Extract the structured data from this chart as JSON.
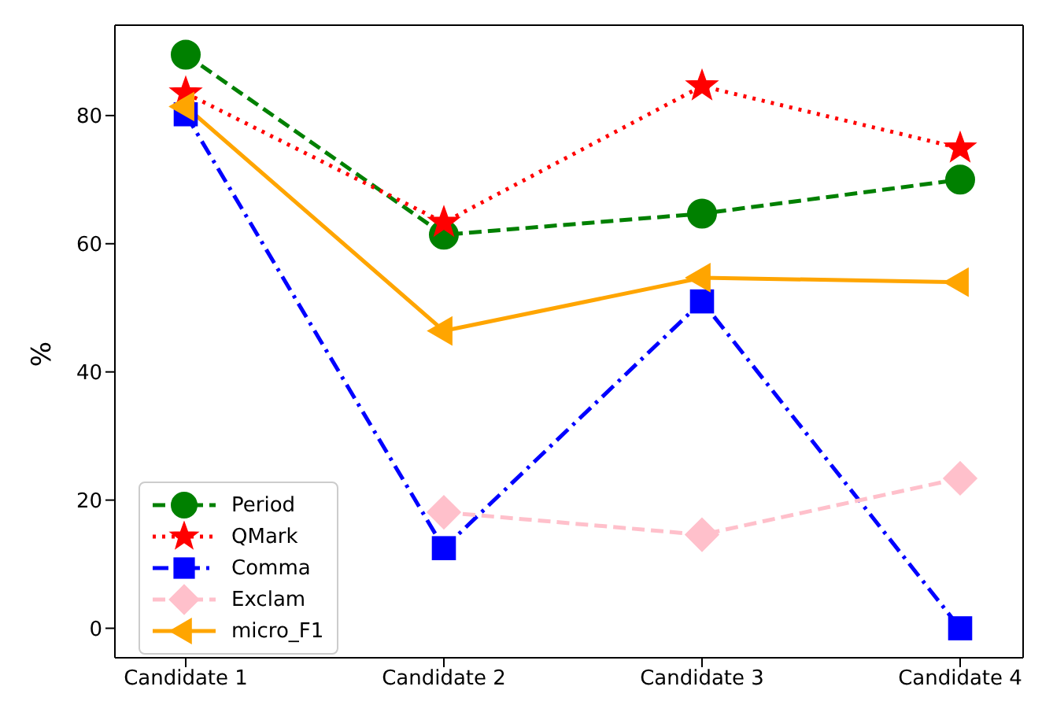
{
  "chart_data": {
    "type": "line",
    "ylabel": "%",
    "categories": [
      "Candidate 1",
      "Candidate 2",
      "Candidate 3",
      "Candidate 4"
    ],
    "series": [
      {
        "name": "Period",
        "color": "#008000",
        "marker": "circle",
        "line_style": "dashed",
        "values": [
          89.5,
          61.4,
          64.7,
          70.0
        ]
      },
      {
        "name": "QMark",
        "color": "#ff0000",
        "marker": "star",
        "line_style": "dotted",
        "values": [
          83.5,
          63.3,
          84.6,
          74.9
        ]
      },
      {
        "name": "Comma",
        "color": "#0000ff",
        "marker": "square",
        "line_style": "dashdot",
        "values": [
          80.2,
          12.5,
          51.0,
          0
        ]
      },
      {
        "name": "Exclam",
        "color": "#ffc0cb",
        "marker": "diamond",
        "line_style": "dashed",
        "values": [
          null,
          18.1,
          14.6,
          23.4
        ]
      },
      {
        "name": "micro_F1",
        "color": "#ffa500",
        "marker": "triangle",
        "line_style": "solid",
        "values": [
          81.4,
          46.4,
          54.7,
          54.0
        ]
      }
    ],
    "ylim": [
      -4.6,
      94.1
    ],
    "yticks": [
      0,
      20,
      40,
      60,
      80
    ],
    "grid": false,
    "legend": "bottom left"
  }
}
